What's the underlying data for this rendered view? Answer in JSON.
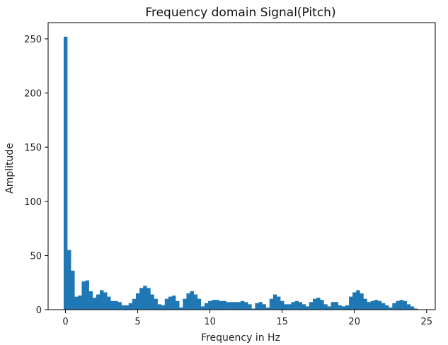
{
  "chart_data": {
    "type": "bar",
    "title": "Frequency domain Signal(Pitch)",
    "xlabel": "Frequency in Hz",
    "ylabel": "Amplitude",
    "xlim": [
      -1.2,
      25.6
    ],
    "ylim": [
      0,
      265
    ],
    "xticks": [
      0,
      5,
      10,
      15,
      20,
      25
    ],
    "yticks": [
      0,
      50,
      100,
      150,
      200,
      250
    ],
    "grid": false,
    "bar_color": "#1f77b4",
    "bin_width": 0.25,
    "x": [
      0,
      0.25,
      0.5,
      0.75,
      1,
      1.25,
      1.5,
      1.75,
      2,
      2.25,
      2.5,
      2.75,
      3,
      3.25,
      3.5,
      3.75,
      4,
      4.25,
      4.5,
      4.75,
      5,
      5.25,
      5.5,
      5.75,
      6,
      6.25,
      6.5,
      6.75,
      7,
      7.25,
      7.5,
      7.75,
      8,
      8.25,
      8.5,
      8.75,
      9,
      9.25,
      9.5,
      9.75,
      10,
      10.25,
      10.5,
      10.75,
      11,
      11.25,
      11.5,
      11.75,
      12,
      12.25,
      12.5,
      12.75,
      13,
      13.25,
      13.5,
      13.75,
      14,
      14.25,
      14.5,
      14.75,
      15,
      15.25,
      15.5,
      15.75,
      16,
      16.25,
      16.5,
      16.75,
      17,
      17.25,
      17.5,
      17.75,
      18,
      18.25,
      18.5,
      18.75,
      19,
      19.25,
      19.5,
      19.75,
      20,
      20.25,
      20.5,
      20.75,
      21,
      21.25,
      21.5,
      21.75,
      22,
      22.25,
      22.5,
      22.75,
      23,
      23.25,
      23.5,
      23.75,
      24,
      24.25
    ],
    "values": [
      252,
      55,
      36,
      12,
      13,
      26,
      27,
      17,
      11,
      14,
      18,
      16,
      12,
      8,
      8,
      7,
      4,
      4,
      6,
      10,
      15,
      20,
      22,
      20,
      14,
      10,
      5,
      4,
      10,
      12,
      13,
      8,
      2,
      10,
      15,
      17,
      14,
      10,
      3,
      6,
      8,
      9,
      9,
      8,
      8,
      7,
      7,
      7,
      7,
      8,
      7,
      5,
      1,
      6,
      7,
      5,
      2,
      10,
      14,
      12,
      8,
      5,
      5,
      7,
      8,
      7,
      5,
      3,
      7,
      10,
      11,
      9,
      5,
      3,
      7,
      7,
      4,
      3,
      4,
      12,
      16,
      18,
      15,
      10,
      7,
      8,
      9,
      8,
      6,
      4,
      2,
      6,
      8,
      9,
      8,
      5,
      3,
      1
    ]
  }
}
